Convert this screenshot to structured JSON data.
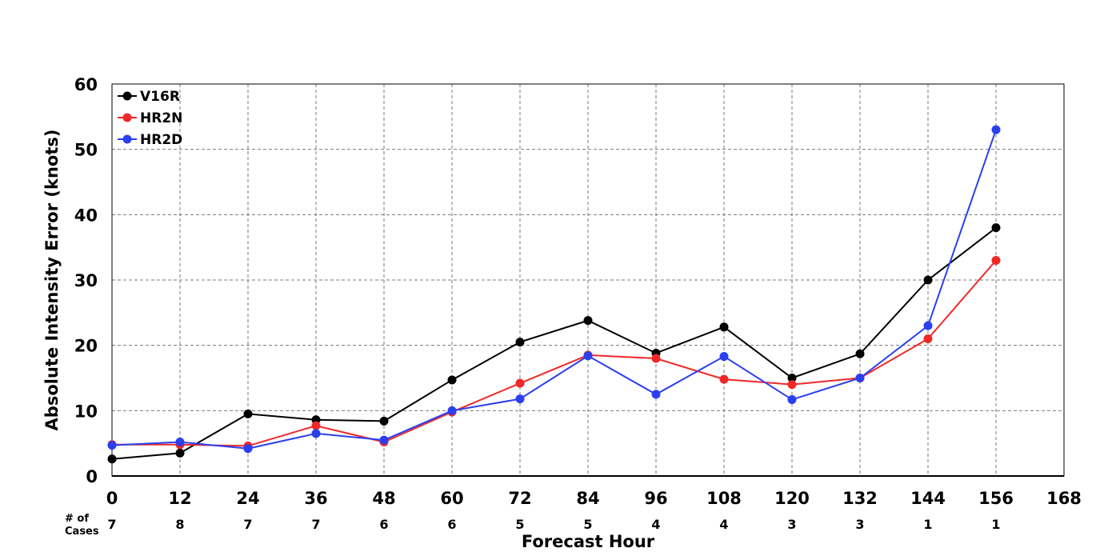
{
  "chart_data": {
    "type": "line",
    "xlabel": "Forecast Hour",
    "ylabel": "Absolute Intensity Error (knots)",
    "xlim": [
      0,
      168
    ],
    "ylim": [
      0,
      60
    ],
    "xticks": [
      0,
      12,
      24,
      36,
      48,
      60,
      72,
      84,
      96,
      108,
      120,
      132,
      144,
      156,
      168
    ],
    "yticks": [
      0,
      10,
      20,
      30,
      40,
      50,
      60
    ],
    "grid": true,
    "legend_position": "top-left",
    "x": [
      0,
      12,
      24,
      36,
      48,
      60,
      72,
      84,
      96,
      108,
      120,
      132,
      144,
      156
    ],
    "series": [
      {
        "name": "V16R",
        "color": "#000000",
        "values": [
          2.6,
          3.5,
          9.5,
          8.6,
          8.4,
          14.7,
          20.5,
          23.8,
          18.8,
          22.8,
          15.0,
          18.7,
          30.0,
          38.0
        ]
      },
      {
        "name": "HR2N",
        "color": "#f02828",
        "values": [
          4.8,
          4.8,
          4.6,
          7.7,
          5.2,
          9.8,
          14.2,
          18.5,
          18.0,
          14.8,
          14.0,
          15.0,
          21.0,
          33.0
        ]
      },
      {
        "name": "HR2D",
        "color": "#2a3ff0",
        "values": [
          4.7,
          5.2,
          4.2,
          6.5,
          5.5,
          10.0,
          11.8,
          18.4,
          12.5,
          18.3,
          11.7,
          15.0,
          23.0,
          53.0
        ]
      }
    ],
    "cases_label": [
      "# of",
      "Cases"
    ],
    "cases": [
      7,
      8,
      7,
      7,
      6,
      6,
      5,
      5,
      4,
      4,
      3,
      3,
      1,
      1
    ]
  }
}
